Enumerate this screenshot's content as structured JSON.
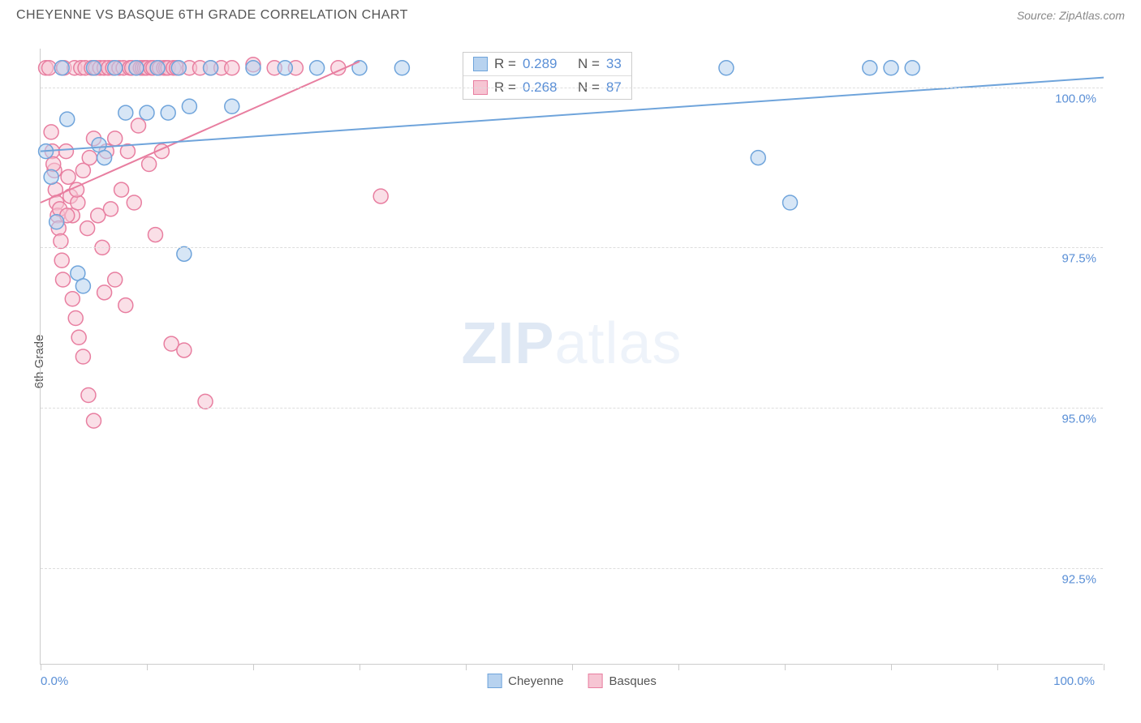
{
  "title": "CHEYENNE VS BASQUE 6TH GRADE CORRELATION CHART",
  "source": "Source: ZipAtlas.com",
  "ylabel": "6th Grade",
  "watermark_zip": "ZIP",
  "watermark_atlas": "atlas",
  "chart": {
    "type": "scatter",
    "xlim": [
      0,
      100
    ],
    "ylim": [
      91,
      100.6
    ],
    "x_axis_label_start": "0.0%",
    "x_axis_label_end": "100.0%",
    "y_gridlines": [
      92.5,
      95.0,
      97.5,
      100.0
    ],
    "y_gridline_labels": [
      "92.5%",
      "95.0%",
      "97.5%",
      "100.0%"
    ],
    "x_ticks": [
      0,
      10,
      20,
      30,
      40,
      50,
      60,
      70,
      80,
      90,
      100
    ],
    "background_color": "#ffffff",
    "grid_color": "#dddddd",
    "marker_radius": 9,
    "marker_stroke_width": 1.5,
    "line_width": 2,
    "series": {
      "cheyenne": {
        "label": "Cheyenne",
        "fill": "#b7d2ef",
        "stroke": "#6fa4db",
        "fill_opacity": 0.55,
        "R": "0.289",
        "N": "33",
        "trend": {
          "x1": 0,
          "y1": 99.0,
          "x2": 100,
          "y2": 100.15
        },
        "points": [
          [
            0.5,
            99.0
          ],
          [
            1.0,
            98.6
          ],
          [
            1.5,
            97.9
          ],
          [
            2.0,
            100.3
          ],
          [
            2.5,
            99.5
          ],
          [
            3.5,
            97.1
          ],
          [
            4.0,
            96.9
          ],
          [
            5.0,
            100.3
          ],
          [
            5.5,
            99.1
          ],
          [
            6.0,
            98.9
          ],
          [
            7.0,
            100.3
          ],
          [
            8.0,
            99.6
          ],
          [
            9.0,
            100.3
          ],
          [
            10.0,
            99.6
          ],
          [
            11.0,
            100.3
          ],
          [
            12.0,
            99.6
          ],
          [
            13.0,
            100.3
          ],
          [
            14.0,
            99.7
          ],
          [
            13.5,
            97.4
          ],
          [
            16.0,
            100.3
          ],
          [
            18.0,
            99.7
          ],
          [
            20.0,
            100.3
          ],
          [
            23.0,
            100.3
          ],
          [
            26.0,
            100.3
          ],
          [
            30.0,
            100.3
          ],
          [
            34.0,
            100.3
          ],
          [
            51.0,
            100.35
          ],
          [
            64.5,
            100.3
          ],
          [
            67.5,
            98.9
          ],
          [
            70.5,
            98.2
          ],
          [
            78.0,
            100.3
          ],
          [
            80.0,
            100.3
          ],
          [
            82.0,
            100.3
          ]
        ]
      },
      "basques": {
        "label": "Basques",
        "fill": "#f6c5d3",
        "stroke": "#e87ea0",
        "fill_opacity": 0.55,
        "R": "0.268",
        "N": "87",
        "trend": {
          "x1": 0,
          "y1": 98.2,
          "x2": 30,
          "y2": 100.4
        },
        "points": [
          [
            0.5,
            100.3
          ],
          [
            0.8,
            100.3
          ],
          [
            1.0,
            99.3
          ],
          [
            1.1,
            99.0
          ],
          [
            1.3,
            98.7
          ],
          [
            1.4,
            98.4
          ],
          [
            1.5,
            98.2
          ],
          [
            1.6,
            98.0
          ],
          [
            1.7,
            97.8
          ],
          [
            1.9,
            97.6
          ],
          [
            2.0,
            97.3
          ],
          [
            2.1,
            97.0
          ],
          [
            2.2,
            100.3
          ],
          [
            2.4,
            99.0
          ],
          [
            2.6,
            98.6
          ],
          [
            2.8,
            98.3
          ],
          [
            3.0,
            98.0
          ],
          [
            3.0,
            96.7
          ],
          [
            3.2,
            100.3
          ],
          [
            3.3,
            96.4
          ],
          [
            3.5,
            98.2
          ],
          [
            3.6,
            96.1
          ],
          [
            3.8,
            100.3
          ],
          [
            4.0,
            98.7
          ],
          [
            4.0,
            95.8
          ],
          [
            4.2,
            100.3
          ],
          [
            4.4,
            97.8
          ],
          [
            4.8,
            100.3
          ],
          [
            4.5,
            95.2
          ],
          [
            5.0,
            99.2
          ],
          [
            5.2,
            100.3
          ],
          [
            5.4,
            98.0
          ],
          [
            5.6,
            100.3
          ],
          [
            5.0,
            94.8
          ],
          [
            5.8,
            97.5
          ],
          [
            6.0,
            100.3
          ],
          [
            6.2,
            99.0
          ],
          [
            6.4,
            100.3
          ],
          [
            6.0,
            96.8
          ],
          [
            6.6,
            98.1
          ],
          [
            6.8,
            100.3
          ],
          [
            7.0,
            99.2
          ],
          [
            7.4,
            100.3
          ],
          [
            7.0,
            97.0
          ],
          [
            7.6,
            98.4
          ],
          [
            7.8,
            100.3
          ],
          [
            8.0,
            96.6
          ],
          [
            8.2,
            99.0
          ],
          [
            8.4,
            100.3
          ],
          [
            8.6,
            100.3
          ],
          [
            8.8,
            98.2
          ],
          [
            9.0,
            100.3
          ],
          [
            9.2,
            99.4
          ],
          [
            9.4,
            100.3
          ],
          [
            9.6,
            100.3
          ],
          [
            9.8,
            100.3
          ],
          [
            10.0,
            100.3
          ],
          [
            10.2,
            98.8
          ],
          [
            10.4,
            100.3
          ],
          [
            10.6,
            100.3
          ],
          [
            10.8,
            97.7
          ],
          [
            11.0,
            100.3
          ],
          [
            11.2,
            100.3
          ],
          [
            11.4,
            99.0
          ],
          [
            11.6,
            100.3
          ],
          [
            11.8,
            100.3
          ],
          [
            12.0,
            100.3
          ],
          [
            12.3,
            96.0
          ],
          [
            12.5,
            100.3
          ],
          [
            12.8,
            100.3
          ],
          [
            13.5,
            95.9
          ],
          [
            14.0,
            100.3
          ],
          [
            15.0,
            100.3
          ],
          [
            15.5,
            95.1
          ],
          [
            16.0,
            100.3
          ],
          [
            17.0,
            100.3
          ],
          [
            18.0,
            100.3
          ],
          [
            20.0,
            100.35
          ],
          [
            22.0,
            100.3
          ],
          [
            24.0,
            100.3
          ],
          [
            28.0,
            100.3
          ],
          [
            32.0,
            98.3
          ],
          [
            1.8,
            98.1
          ],
          [
            2.5,
            98.0
          ],
          [
            3.4,
            98.4
          ],
          [
            4.6,
            98.9
          ],
          [
            1.2,
            98.8
          ]
        ]
      }
    }
  },
  "stats_labels": {
    "R": "R =",
    "N": "N ="
  },
  "legend": {
    "cheyenne_swatch_fill": "#b7d2ef",
    "cheyenne_swatch_stroke": "#6fa4db",
    "basques_swatch_fill": "#f6c5d3",
    "basques_swatch_stroke": "#e87ea0"
  }
}
